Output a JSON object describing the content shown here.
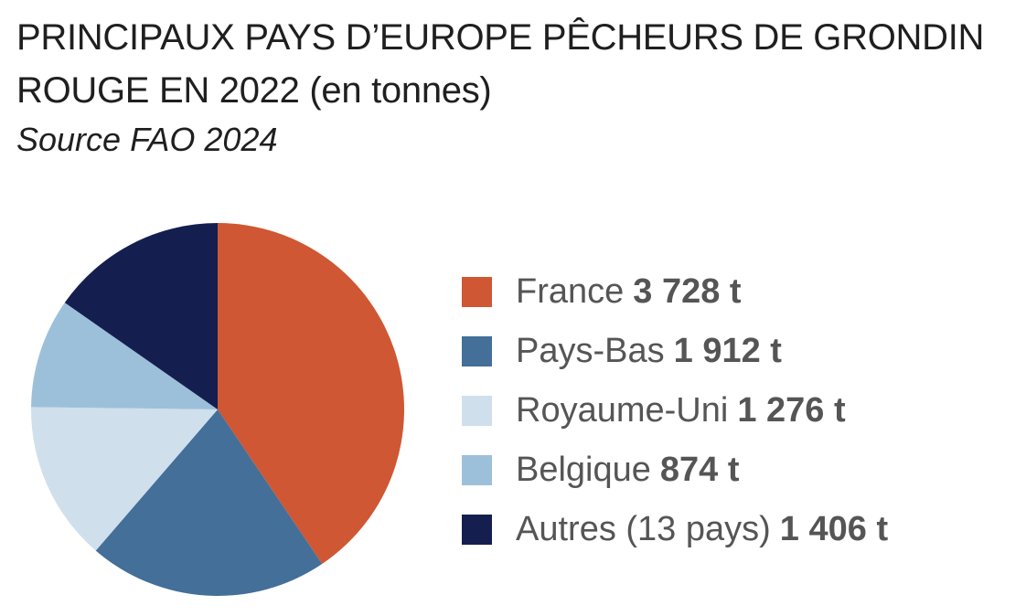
{
  "header": {
    "title": "PRINCIPAUX PAYS D’EUROPE PÊCHEURS DE GRONDIN ROUGE EN 2022",
    "title_unit": "(en tonnes)",
    "source": "Source FAO 2024"
  },
  "chart_data": {
    "type": "pie",
    "title": "PRINCIPAUX PAYS D’EUROPE PÊCHEURS DE GRONDIN ROUGE EN 2022 (en tonnes)",
    "subtitle": "Source FAO 2024",
    "unit": "t",
    "legend_position": "right",
    "categories": [
      "France",
      "Pays-Bas",
      "Royaume-Uni",
      "Belgique",
      "Autres (13 pays)"
    ],
    "values": [
      3728,
      1912,
      1276,
      874,
      1406
    ],
    "value_labels": [
      "3 728 t",
      "1 912 t",
      "1 276 t",
      "874 t",
      "1 406 t"
    ],
    "colors": [
      "#cf5733",
      "#436f99",
      "#d0dfec",
      "#9cc0da",
      "#141f4f"
    ]
  }
}
